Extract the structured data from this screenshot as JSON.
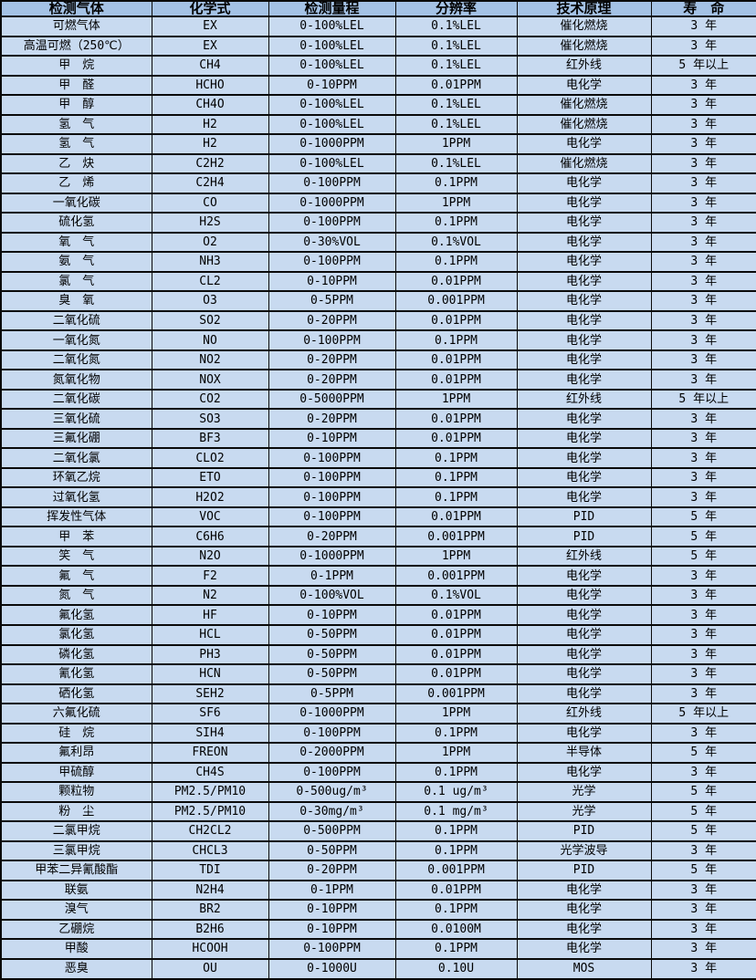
{
  "colors": {
    "header_bg": "#a4c2e5",
    "row_bg": "#c8daf0",
    "border": "#0a0a0a",
    "text": "#000000"
  },
  "table": {
    "columns": [
      {
        "key": "gas",
        "label": "检测气体"
      },
      {
        "key": "formula",
        "label": "化学式"
      },
      {
        "key": "range",
        "label": "检测量程"
      },
      {
        "key": "resolution",
        "label": "分辨率"
      },
      {
        "key": "principle",
        "label": "技术原理"
      },
      {
        "key": "lifespan",
        "label": "寿　命"
      }
    ],
    "rows": [
      [
        "可燃气体",
        "EX",
        "0-100%LEL",
        "0.1%LEL",
        "催化燃烧",
        "3 年"
      ],
      [
        "高温可燃（250℃）",
        "EX",
        "0-100%LEL",
        "0.1%LEL",
        "催化燃烧",
        "3 年"
      ],
      [
        "甲　烷",
        "CH4",
        "0-100%LEL",
        "0.1%LEL",
        "红外线",
        "5 年以上"
      ],
      [
        "甲　醛",
        "HCHO",
        "0-10PPM",
        "0.01PPM",
        "电化学",
        "3 年"
      ],
      [
        "甲　醇",
        "CH4O",
        "0-100%LEL",
        "0.1%LEL",
        "催化燃烧",
        "3 年"
      ],
      [
        "氢　气",
        "H2",
        "0-100%LEL",
        "0.1%LEL",
        "催化燃烧",
        "3 年"
      ],
      [
        "氢　气",
        "H2",
        "0-1000PPM",
        "1PPM",
        "电化学",
        "3 年"
      ],
      [
        "乙　炔",
        "C2H2",
        "0-100%LEL",
        "0.1%LEL",
        "催化燃烧",
        "3 年"
      ],
      [
        "乙　烯",
        "C2H4",
        "0-100PPM",
        "0.1PPM",
        "电化学",
        "3 年"
      ],
      [
        "一氧化碳",
        "CO",
        "0-1000PPM",
        "1PPM",
        "电化学",
        "3 年"
      ],
      [
        "硫化氢",
        "H2S",
        "0-100PPM",
        "0.1PPM",
        "电化学",
        "3 年"
      ],
      [
        "氧　气",
        "O2",
        "0-30%VOL",
        "0.1%VOL",
        "电化学",
        "3 年"
      ],
      [
        "氨　气",
        "NH3",
        "0-100PPM",
        "0.1PPM",
        "电化学",
        "3 年"
      ],
      [
        "氯　气",
        "CL2",
        "0-10PPM",
        "0.01PPM",
        "电化学",
        "3 年"
      ],
      [
        "臭　氧",
        "O3",
        "0-5PPM",
        "0.001PPM",
        "电化学",
        "3 年"
      ],
      [
        "二氧化硫",
        "SO2",
        "0-20PPM",
        "0.01PPM",
        "电化学",
        "3 年"
      ],
      [
        "一氧化氮",
        "NO",
        "0-100PPM",
        "0.1PPM",
        "电化学",
        "3 年"
      ],
      [
        "二氧化氮",
        "NO2",
        "0-20PPM",
        "0.01PPM",
        "电化学",
        "3 年"
      ],
      [
        "氮氧化物",
        "NOX",
        "0-20PPM",
        "0.01PPM",
        "电化学",
        "3 年"
      ],
      [
        "二氧化碳",
        "CO2",
        "0-5000PPM",
        "1PPM",
        "红外线",
        "5 年以上"
      ],
      [
        "三氧化硫",
        "SO3",
        "0-20PPM",
        "0.01PPM",
        "电化学",
        "3 年"
      ],
      [
        "三氟化硼",
        "BF3",
        "0-10PPM",
        "0.01PPM",
        "电化学",
        "3 年"
      ],
      [
        "二氧化氯",
        "CLO2",
        "0-100PPM",
        "0.1PPM",
        "电化学",
        "3 年"
      ],
      [
        "环氧乙烷",
        "ETO",
        "0-100PPM",
        "0.1PPM",
        "电化学",
        "3 年"
      ],
      [
        "过氧化氢",
        "H2O2",
        "0-100PPM",
        "0.1PPM",
        "电化学",
        "3 年"
      ],
      [
        "挥发性气体",
        "VOC",
        "0-100PPM",
        "0.01PPM",
        "PID",
        "5 年"
      ],
      [
        "甲　苯",
        "C6H6",
        "0-20PPM",
        "0.001PPM",
        "PID",
        "5 年"
      ],
      [
        "笑　气",
        "N2O",
        "0-1000PPM",
        "1PPM",
        "红外线",
        "5 年"
      ],
      [
        "氟　气",
        "F2",
        "0-1PPM",
        "0.001PPM",
        "电化学",
        "3 年"
      ],
      [
        "氮　气",
        "N2",
        "0-100%VOL",
        "0.1%VOL",
        "电化学",
        "3 年"
      ],
      [
        "氟化氢",
        "HF",
        "0-10PPM",
        "0.01PPM",
        "电化学",
        "3 年"
      ],
      [
        "氯化氢",
        "HCL",
        "0-50PPM",
        "0.01PPM",
        "电化学",
        "3 年"
      ],
      [
        "磷化氢",
        "PH3",
        "0-50PPM",
        "0.01PPM",
        "电化学",
        "3 年"
      ],
      [
        "氰化氢",
        "HCN",
        "0-50PPM",
        "0.01PPM",
        "电化学",
        "3 年"
      ],
      [
        "硒化氢",
        "SEH2",
        "0-5PPM",
        "0.001PPM",
        "电化学",
        "3 年"
      ],
      [
        "六氟化硫",
        "SF6",
        "0-1000PPM",
        "1PPM",
        "红外线",
        "5 年以上"
      ],
      [
        "硅　烷",
        "SIH4",
        "0-100PPM",
        "0.1PPM",
        "电化学",
        "3 年"
      ],
      [
        "氟利昂",
        "FREON",
        "0-2000PPM",
        "1PPM",
        "半导体",
        "5 年"
      ],
      [
        "甲硫醇",
        "CH4S",
        "0-100PPM",
        "0.1PPM",
        "电化学",
        "3 年"
      ],
      [
        "颗粒物",
        "PM2.5/PM10",
        "0-500ug/m³",
        "0.1 ug/m³",
        "光学",
        "5 年"
      ],
      [
        "粉　尘",
        "PM2.5/PM10",
        "0-30mg/m³",
        "0.1 mg/m³",
        "光学",
        "5 年"
      ],
      [
        "二氯甲烷",
        "CH2CL2",
        "0-500PPM",
        "0.1PPM",
        "PID",
        "5 年"
      ],
      [
        "三氯甲烷",
        "CHCL3",
        "0-50PPM",
        "0.1PPM",
        "光学波导",
        "3 年"
      ],
      [
        "甲苯二异氰酸酯",
        "TDI",
        "0-20PPM",
        "0.001PPM",
        "PID",
        "5 年"
      ],
      [
        "联氨",
        "N2H4",
        "0-1PPM",
        "0.01PPM",
        "电化学",
        "3 年"
      ],
      [
        "溴气",
        "BR2",
        "0-10PPM",
        "0.1PPM",
        "电化学",
        "3 年"
      ],
      [
        "乙硼烷",
        "B2H6",
        "0-10PPM",
        "0.0100M",
        "电化学",
        "3 年"
      ],
      [
        "甲酸",
        "HCOOH",
        "0-100PPM",
        "0.1PPM",
        "电化学",
        "3 年"
      ],
      [
        "恶臭",
        "OU",
        "0-1000U",
        "0.10U",
        "MOS",
        "3 年"
      ]
    ]
  }
}
